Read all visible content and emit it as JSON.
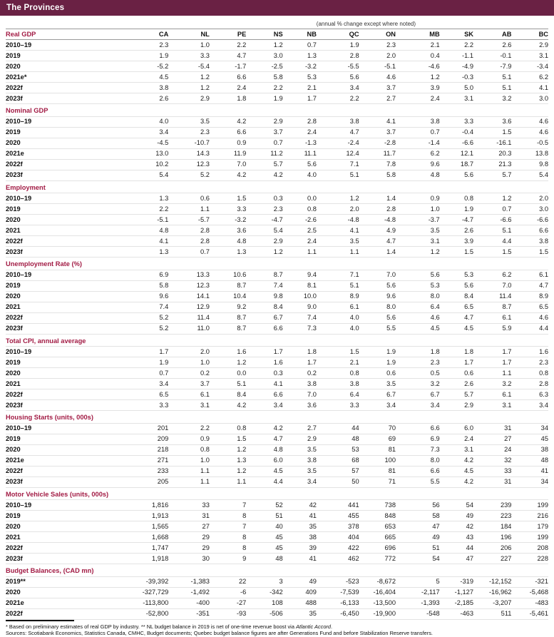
{
  "title": "The Provinces",
  "subtitle": "(annual % change except where noted)",
  "colors": {
    "titlebar_bg": "#6a2144",
    "titlebar_text": "#ffffff",
    "section_text": "#a21b44",
    "rule_dark": "#9a9a9a",
    "rule_light": "#e3e3e3"
  },
  "columns": [
    "CA",
    "NL",
    "PE",
    "NS",
    "NB",
    "QC",
    "ON",
    "MB",
    "SK",
    "AB",
    "BC"
  ],
  "sections": [
    {
      "label": "Real GDP",
      "rows": [
        {
          "label": "2010–19",
          "values": [
            "2.3",
            "1.0",
            "2.2",
            "1.2",
            "0.7",
            "1.9",
            "2.3",
            "2.1",
            "2.2",
            "2.6",
            "2.9"
          ]
        },
        {
          "label": "2019",
          "values": [
            "1.9",
            "3.3",
            "4.7",
            "3.0",
            "1.3",
            "2.8",
            "2.0",
            "0.4",
            "-1.1",
            "-0.1",
            "3.1"
          ]
        },
        {
          "label": "2020",
          "values": [
            "-5.2",
            "-5.4",
            "-1.7",
            "-2.5",
            "-3.2",
            "-5.5",
            "-5.1",
            "-4.6",
            "-4.9",
            "-7.9",
            "-3.4"
          ]
        },
        {
          "label": "2021e*",
          "values": [
            "4.5",
            "1.2",
            "6.6",
            "5.8",
            "5.3",
            "5.6",
            "4.6",
            "1.2",
            "-0.3",
            "5.1",
            "6.2"
          ]
        },
        {
          "label": "2022f",
          "values": [
            "3.8",
            "1.2",
            "2.4",
            "2.2",
            "2.1",
            "3.4",
            "3.7",
            "3.9",
            "5.0",
            "5.1",
            "4.1"
          ]
        },
        {
          "label": "2023f",
          "values": [
            "2.6",
            "2.9",
            "1.8",
            "1.9",
            "1.7",
            "2.2",
            "2.7",
            "2.4",
            "3.1",
            "3.2",
            "3.0"
          ]
        }
      ]
    },
    {
      "label": "Nominal GDP",
      "rows": [
        {
          "label": "2010–19",
          "values": [
            "4.0",
            "3.5",
            "4.2",
            "2.9",
            "2.8",
            "3.8",
            "4.1",
            "3.8",
            "3.3",
            "3.6",
            "4.6"
          ]
        },
        {
          "label": "2019",
          "values": [
            "3.4",
            "2.3",
            "6.6",
            "3.7",
            "2.4",
            "4.7",
            "3.7",
            "0.7",
            "-0.4",
            "1.5",
            "4.6"
          ]
        },
        {
          "label": "2020",
          "values": [
            "-4.5",
            "-10.7",
            "0.9",
            "0.7",
            "-1.3",
            "-2.4",
            "-2.8",
            "-1.4",
            "-6.6",
            "-16.1",
            "-0.5"
          ]
        },
        {
          "label": "2021e",
          "values": [
            "13.0",
            "14.3",
            "11.9",
            "11.2",
            "11.1",
            "12.4",
            "11.7",
            "6.2",
            "12.1",
            "20.3",
            "13.8"
          ]
        },
        {
          "label": "2022f",
          "values": [
            "10.2",
            "12.3",
            "7.0",
            "5.7",
            "5.6",
            "7.1",
            "7.8",
            "9.6",
            "18.7",
            "21.3",
            "9.8"
          ]
        },
        {
          "label": "2023f",
          "values": [
            "5.4",
            "5.2",
            "4.2",
            "4.2",
            "4.0",
            "5.1",
            "5.8",
            "4.8",
            "5.6",
            "5.7",
            "5.4"
          ]
        }
      ]
    },
    {
      "label": "Employment",
      "rows": [
        {
          "label": "2010–19",
          "values": [
            "1.3",
            "0.6",
            "1.5",
            "0.3",
            "0.0",
            "1.2",
            "1.4",
            "0.9",
            "0.8",
            "1.2",
            "2.0"
          ]
        },
        {
          "label": "2019",
          "values": [
            "2.2",
            "1.1",
            "3.3",
            "2.3",
            "0.8",
            "2.0",
            "2.8",
            "1.0",
            "1.9",
            "0.7",
            "3.0"
          ]
        },
        {
          "label": "2020",
          "values": [
            "-5.1",
            "-5.7",
            "-3.2",
            "-4.7",
            "-2.6",
            "-4.8",
            "-4.8",
            "-3.7",
            "-4.7",
            "-6.6",
            "-6.6"
          ]
        },
        {
          "label": "2021",
          "values": [
            "4.8",
            "2.8",
            "3.6",
            "5.4",
            "2.5",
            "4.1",
            "4.9",
            "3.5",
            "2.6",
            "5.1",
            "6.6"
          ]
        },
        {
          "label": "2022f",
          "values": [
            "4.1",
            "2.8",
            "4.8",
            "2.9",
            "2.4",
            "3.5",
            "4.7",
            "3.1",
            "3.9",
            "4.4",
            "3.8"
          ]
        },
        {
          "label": "2023f",
          "values": [
            "1.3",
            "0.7",
            "1.3",
            "1.2",
            "1.1",
            "1.1",
            "1.4",
            "1.2",
            "1.5",
            "1.5",
            "1.5"
          ]
        }
      ]
    },
    {
      "label": "Unemployment Rate (%)",
      "rows": [
        {
          "label": "2010–19",
          "values": [
            "6.9",
            "13.3",
            "10.6",
            "8.7",
            "9.4",
            "7.1",
            "7.0",
            "5.6",
            "5.3",
            "6.2",
            "6.1"
          ]
        },
        {
          "label": "2019",
          "values": [
            "5.8",
            "12.3",
            "8.7",
            "7.4",
            "8.1",
            "5.1",
            "5.6",
            "5.3",
            "5.6",
            "7.0",
            "4.7"
          ]
        },
        {
          "label": "2020",
          "values": [
            "9.6",
            "14.1",
            "10.4",
            "9.8",
            "10.0",
            "8.9",
            "9.6",
            "8.0",
            "8.4",
            "11.4",
            "8.9"
          ]
        },
        {
          "label": "2021",
          "values": [
            "7.4",
            "12.9",
            "9.2",
            "8.4",
            "9.0",
            "6.1",
            "8.0",
            "6.4",
            "6.5",
            "8.7",
            "6.5"
          ]
        },
        {
          "label": "2022f",
          "values": [
            "5.2",
            "11.4",
            "8.7",
            "6.7",
            "7.4",
            "4.0",
            "5.6",
            "4.6",
            "4.7",
            "6.1",
            "4.6"
          ]
        },
        {
          "label": "2023f",
          "values": [
            "5.2",
            "11.0",
            "8.7",
            "6.6",
            "7.3",
            "4.0",
            "5.5",
            "4.5",
            "4.5",
            "5.9",
            "4.4"
          ]
        }
      ]
    },
    {
      "label": "Total CPI, annual average",
      "rows": [
        {
          "label": "2010–19",
          "values": [
            "1.7",
            "2.0",
            "1.6",
            "1.7",
            "1.8",
            "1.5",
            "1.9",
            "1.8",
            "1.8",
            "1.7",
            "1.6"
          ]
        },
        {
          "label": "2019",
          "values": [
            "1.9",
            "1.0",
            "1.2",
            "1.6",
            "1.7",
            "2.1",
            "1.9",
            "2.3",
            "1.7",
            "1.7",
            "2.3"
          ]
        },
        {
          "label": "2020",
          "values": [
            "0.7",
            "0.2",
            "0.0",
            "0.3",
            "0.2",
            "0.8",
            "0.6",
            "0.5",
            "0.6",
            "1.1",
            "0.8"
          ]
        },
        {
          "label": "2021",
          "values": [
            "3.4",
            "3.7",
            "5.1",
            "4.1",
            "3.8",
            "3.8",
            "3.5",
            "3.2",
            "2.6",
            "3.2",
            "2.8"
          ]
        },
        {
          "label": "2022f",
          "values": [
            "6.5",
            "6.1",
            "8.4",
            "6.6",
            "7.0",
            "6.4",
            "6.7",
            "6.7",
            "5.7",
            "6.1",
            "6.3"
          ]
        },
        {
          "label": "2023f",
          "values": [
            "3.3",
            "3.1",
            "4.2",
            "3.4",
            "3.6",
            "3.3",
            "3.4",
            "3.4",
            "2.9",
            "3.1",
            "3.4"
          ]
        }
      ]
    },
    {
      "label": "Housing Starts (units, 000s)",
      "rows": [
        {
          "label": "2010–19",
          "values": [
            "201",
            "2.2",
            "0.8",
            "4.2",
            "2.7",
            "44",
            "70",
            "6.6",
            "6.0",
            "31",
            "34"
          ]
        },
        {
          "label": "2019",
          "values": [
            "209",
            "0.9",
            "1.5",
            "4.7",
            "2.9",
            "48",
            "69",
            "6.9",
            "2.4",
            "27",
            "45"
          ]
        },
        {
          "label": "2020",
          "values": [
            "218",
            "0.8",
            "1.2",
            "4.8",
            "3.5",
            "53",
            "81",
            "7.3",
            "3.1",
            "24",
            "38"
          ]
        },
        {
          "label": "2021e",
          "values": [
            "271",
            "1.0",
            "1.3",
            "6.0",
            "3.8",
            "68",
            "100",
            "8.0",
            "4.2",
            "32",
            "48"
          ]
        },
        {
          "label": "2022f",
          "values": [
            "233",
            "1.1",
            "1.2",
            "4.5",
            "3.5",
            "57",
            "81",
            "6.6",
            "4.5",
            "33",
            "41"
          ]
        },
        {
          "label": "2023f",
          "values": [
            "205",
            "1.1",
            "1.1",
            "4.4",
            "3.4",
            "50",
            "71",
            "5.5",
            "4.2",
            "31",
            "34"
          ]
        }
      ]
    },
    {
      "label": "Motor Vehicle Sales (units, 000s)",
      "rows": [
        {
          "label": "2010–19",
          "values": [
            "1,816",
            "33",
            "7",
            "52",
            "42",
            "441",
            "738",
            "56",
            "54",
            "239",
            "199"
          ]
        },
        {
          "label": "2019",
          "values": [
            "1,913",
            "31",
            "8",
            "51",
            "41",
            "455",
            "848",
            "58",
            "49",
            "223",
            "216"
          ]
        },
        {
          "label": "2020",
          "values": [
            "1,565",
            "27",
            "7",
            "40",
            "35",
            "378",
            "653",
            "47",
            "42",
            "184",
            "179"
          ]
        },
        {
          "label": "2021",
          "values": [
            "1,668",
            "29",
            "8",
            "45",
            "38",
            "404",
            "665",
            "49",
            "43",
            "196",
            "199"
          ]
        },
        {
          "label": "2022f",
          "values": [
            "1,747",
            "29",
            "8",
            "45",
            "39",
            "422",
            "696",
            "51",
            "44",
            "206",
            "208"
          ]
        },
        {
          "label": "2023f",
          "values": [
            "1,918",
            "30",
            "9",
            "48",
            "41",
            "462",
            "772",
            "54",
            "47",
            "227",
            "228"
          ]
        }
      ]
    },
    {
      "label": "Budget Balances, (CAD mn)",
      "rows": [
        {
          "label": "2019**",
          "values": [
            "-39,392",
            "-1,383",
            "22",
            "3",
            "49",
            "-523",
            "-8,672",
            "5",
            "-319",
            "-12,152",
            "-321"
          ]
        },
        {
          "label": "2020",
          "values": [
            "-327,729",
            "-1,492",
            "-6",
            "-342",
            "409",
            "-7,539",
            "-16,404",
            "-2,117",
            "-1,127",
            "-16,962",
            "-5,468"
          ]
        },
        {
          "label": "2021e",
          "values": [
            "-113,800",
            "-400",
            "-27",
            "108",
            "488",
            "-6,133",
            "-13,500",
            "-1,393",
            "-2,185",
            "-3,207",
            "-483"
          ]
        },
        {
          "label": "2022f",
          "values": [
            "-52,800",
            "-351",
            "-93",
            "-506",
            "35",
            "-6,450",
            "-19,900",
            "-548",
            "-463",
            "511",
            "-5,461"
          ]
        }
      ]
    }
  ],
  "footnotes": {
    "line1_pre": "* Based on preliminary estimates of real GDP by industry. ** NL budget balance in 2019 is net of one-time revenue boost via ",
    "line1_italic": "Atlantic Accord",
    "line1_post": ".",
    "line2": "Sources: Scotiabank Economics, Statistics Canada, CMHC, Budget documents; Quebec budget balance figures are after Generations Fund and before Stabilization Reserve transfers."
  }
}
